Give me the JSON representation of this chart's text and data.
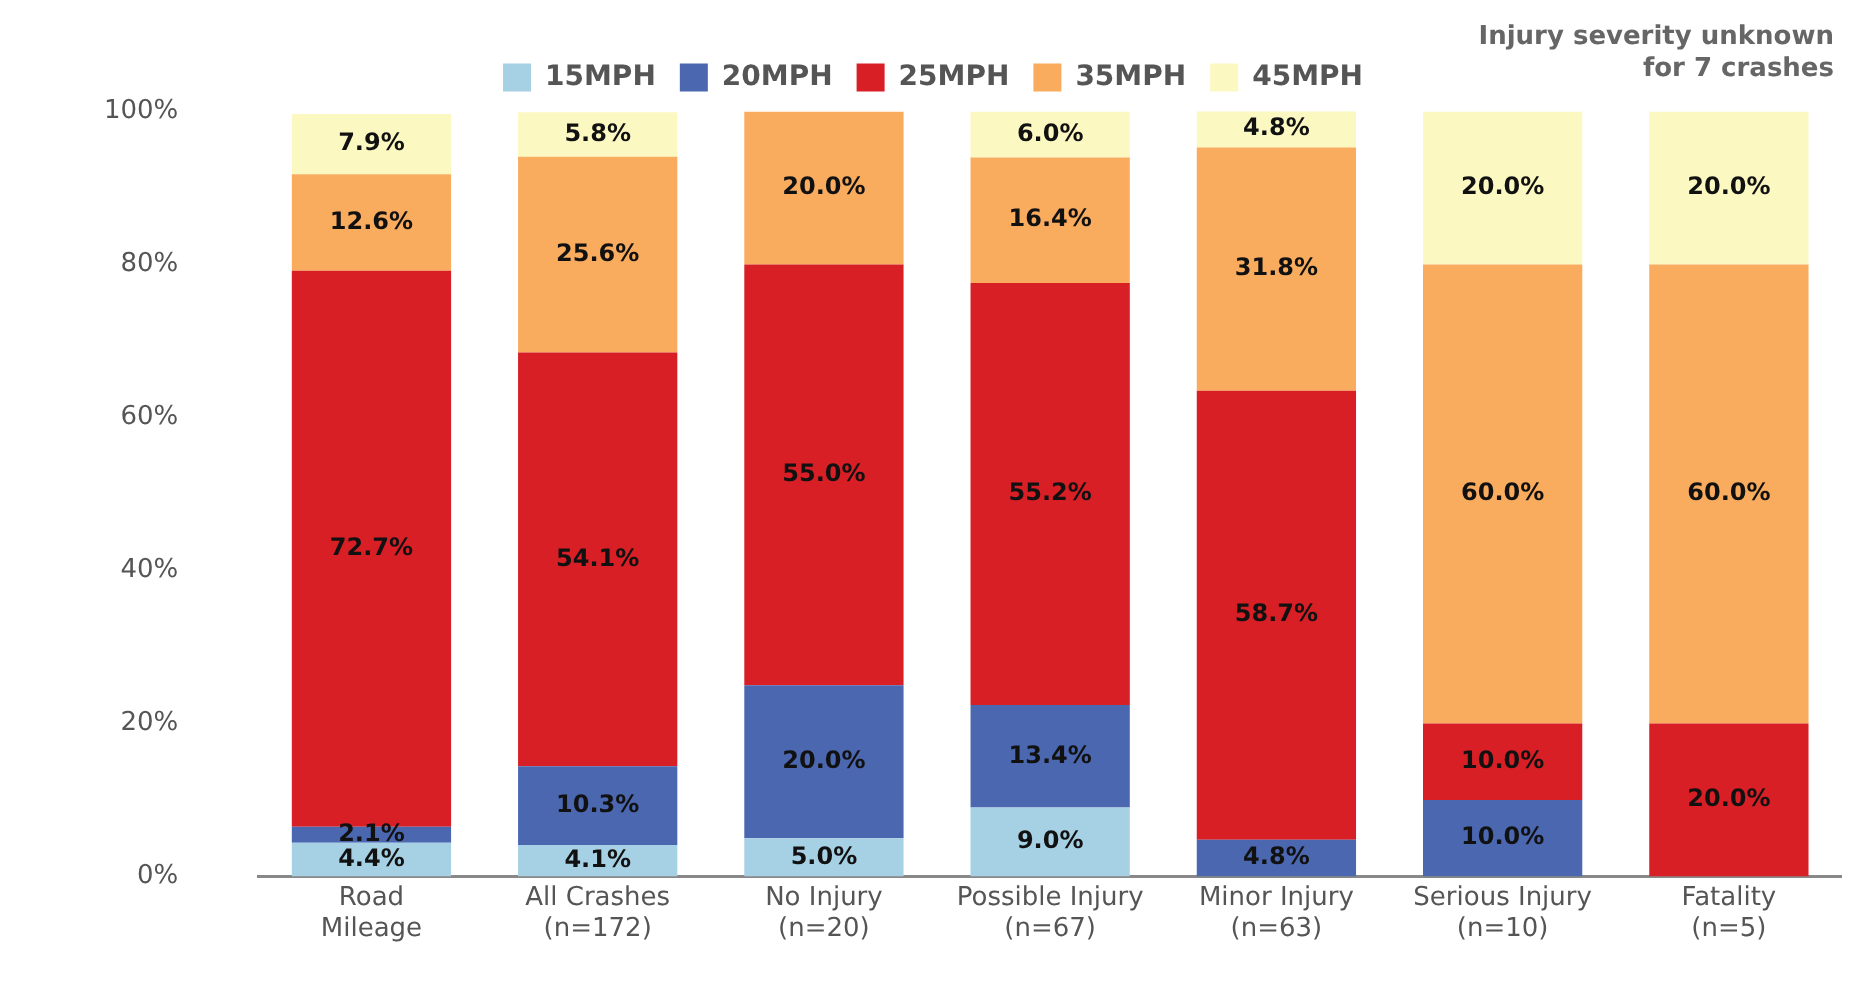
{
  "chart_data": {
    "type": "bar",
    "stacked": true,
    "categories": [
      "Road\nMileage",
      "All Crashes\n(n=172)",
      "No Injury\n(n=20)",
      "Possible Injury\n(n=67)",
      "Minor Injury\n(n=63)",
      "Serious Injury\n(n=10)",
      "Fatality\n(n=5)"
    ],
    "series": [
      {
        "name": "15MPH",
        "color": "#a6d0e4",
        "values": [
          4.4,
          4.1,
          5.0,
          9.0,
          null,
          null,
          null
        ],
        "value_labels": [
          "4.4%",
          "4.1%",
          "5.0%",
          "9.0%",
          null,
          null,
          null
        ]
      },
      {
        "name": "20MPH",
        "color": "#4a67b0",
        "values": [
          2.1,
          10.3,
          20.0,
          13.4,
          4.8,
          10.0,
          null
        ],
        "value_labels": [
          "2.1%",
          "10.3%",
          "20.0%",
          "13.4%",
          "4.8%",
          "10.0%",
          null
        ]
      },
      {
        "name": "25MPH",
        "color": "#d91f26",
        "values": [
          72.7,
          54.1,
          55.0,
          55.2,
          58.7,
          10.0,
          20.0
        ],
        "value_labels": [
          "72.7%",
          "54.1%",
          "55.0%",
          "55.2%",
          "58.7%",
          "10.0%",
          "20.0%"
        ]
      },
      {
        "name": "35MPH",
        "color": "#f9ab5e",
        "values": [
          12.6,
          25.6,
          20.0,
          16.4,
          31.8,
          60.0,
          60.0
        ],
        "value_labels": [
          "12.6%",
          "25.6%",
          "20.0%",
          "16.4%",
          "31.8%",
          "60.0%",
          "60.0%"
        ]
      },
      {
        "name": "45MPH",
        "color": "#fbf8c2",
        "values": [
          7.9,
          5.8,
          null,
          6.0,
          4.8,
          20.0,
          20.0
        ],
        "value_labels": [
          "7.9%",
          "5.8%",
          null,
          "6.0%",
          "4.8%",
          "20.0%",
          "20.0%"
        ]
      }
    ],
    "ylim": [
      0,
      100
    ],
    "yticks": [
      {
        "value": 0,
        "label": "0%"
      },
      {
        "value": 20,
        "label": "20%"
      },
      {
        "value": 40,
        "label": "40%"
      },
      {
        "value": 60,
        "label": "60%"
      },
      {
        "value": 80,
        "label": "80%"
      },
      {
        "value": 100,
        "label": "100%"
      }
    ],
    "grid": false,
    "legend": "top",
    "annotations": [
      "Injury severity unknown\nfor 7 crashes"
    ]
  }
}
